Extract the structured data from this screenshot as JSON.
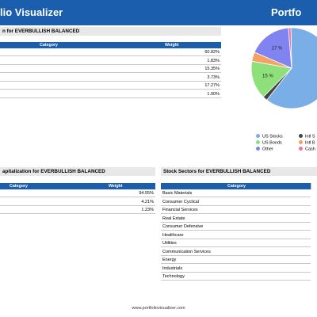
{
  "header": {
    "title": "lio Visualizer",
    "title_right": "Portfo"
  },
  "asset_panel": {
    "title": "n for EVERBULLISH BALANCED",
    "col_category": "Category",
    "col_weight": "Weight",
    "rows": [
      {
        "category": "",
        "weight": "60.82%"
      },
      {
        "category": "",
        "weight": "1.83%"
      },
      {
        "category": "",
        "weight": "15.35%"
      },
      {
        "category": "",
        "weight": "3.73%"
      },
      {
        "category": "",
        "weight": "17.27%"
      },
      {
        "category": "",
        "weight": "1.00%"
      }
    ]
  },
  "chart_data": {
    "type": "pie",
    "title": "",
    "series": [
      {
        "name": "US Stocks",
        "value": 60.82,
        "color": "#7aaee6"
      },
      {
        "name": "Intl Stocks",
        "value": 1.83,
        "color": "#444444"
      },
      {
        "name": "US Bonds",
        "value": 15.35,
        "color": "#8ee07a"
      },
      {
        "name": "Intl Bonds",
        "value": 3.73,
        "color": "#f4a261"
      },
      {
        "name": "Other",
        "value": 17.27,
        "color": "#8183f0"
      },
      {
        "name": "Cash",
        "value": 1.0,
        "color": "#f26fa1"
      }
    ],
    "data_labels": [
      "15 %",
      "17 %"
    ],
    "legend_text": [
      "US Stocks",
      "US Bonds",
      "Other",
      "Intl S",
      "Intl B",
      "Cash"
    ],
    "legend_placement": "bottom"
  },
  "market_cap_panel": {
    "title": "apitalization for EVERBULLISH BALANCED",
    "col_category": "Category",
    "col_weight": "Weight",
    "rows": [
      {
        "category": "",
        "weight": "94.55%"
      },
      {
        "category": "",
        "weight": "4.21%"
      },
      {
        "category": "",
        "weight": "1.23%"
      }
    ]
  },
  "sectors_panel": {
    "title": "Stock Sectors for EVERBULLISH BALANCED",
    "col_category": "Category",
    "rows": [
      {
        "category": "Basic Materials"
      },
      {
        "category": "Consumer Cyclical"
      },
      {
        "category": "Financial Services"
      },
      {
        "category": "Real Estate"
      },
      {
        "category": "Consumer Defensive"
      },
      {
        "category": "Healthcare"
      },
      {
        "category": "Utilities"
      },
      {
        "category": "Communication Services"
      },
      {
        "category": "Energy"
      },
      {
        "category": "Industrials"
      },
      {
        "category": "Technology"
      }
    ]
  },
  "footer": {
    "url": "www.portfoliovisualizer.com"
  }
}
